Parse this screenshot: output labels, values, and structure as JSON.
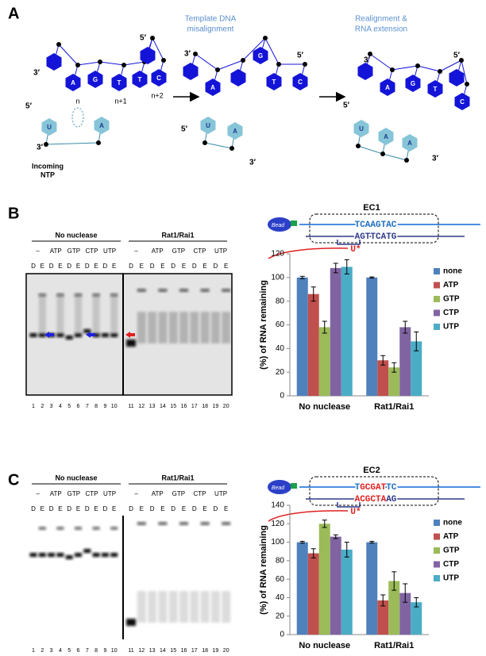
{
  "panel_a": {
    "label": "A",
    "step_1": [
      "Template DNA",
      "misalignment"
    ],
    "step_2": [
      "Realignment &",
      "RNA extension"
    ],
    "structures": [
      {
        "bases": [
          "A",
          "G",
          "T",
          "T",
          "C",
          "U",
          "A"
        ],
        "ends": [
          "3′",
          "5′",
          "5′",
          "3′"
        ],
        "positions": [
          "n",
          "n+1",
          "n+2"
        ],
        "incoming": [
          "Incoming",
          "NTP"
        ]
      },
      {
        "bases": [
          "A",
          "G",
          "T",
          "C",
          "U",
          "A"
        ],
        "ends": [
          "3′",
          "5′",
          "5′",
          "3′"
        ]
      },
      {
        "bases": [
          "A",
          "G",
          "T",
          "C",
          "U",
          "A",
          "A"
        ],
        "ends": [
          "3′",
          "5′",
          "5′",
          "3′"
        ]
      }
    ]
  },
  "panel_b": {
    "label": "B",
    "groups": [
      "No nuclease",
      "Rat1/Rai1"
    ],
    "treatments": [
      "–",
      "ATP",
      "GTP",
      "CTP",
      "UTP"
    ],
    "lane_types": [
      "D",
      "E"
    ],
    "lanes": [
      1,
      2,
      3,
      4,
      5,
      6,
      7,
      8,
      9,
      10,
      11,
      12,
      13,
      14,
      15,
      16,
      17,
      18,
      19,
      20
    ],
    "complex": {
      "title": "EC1",
      "bead": "Bead",
      "top": [
        "TCAAGTAC"
      ],
      "bottom": [
        "AGTTCATG"
      ],
      "rna": "U*"
    }
  },
  "panel_c": {
    "label": "C",
    "groups": [
      "No nuclease",
      "Rat1/Rai1"
    ],
    "treatments": [
      "–",
      "ATP",
      "GTP",
      "CTP",
      "UTP"
    ],
    "lane_types": [
      "D",
      "E"
    ],
    "lanes": [
      1,
      2,
      3,
      4,
      5,
      6,
      7,
      8,
      9,
      10,
      11,
      12,
      13,
      14,
      15,
      16,
      17,
      18,
      19,
      20
    ],
    "complex": {
      "title": "EC2",
      "bead": "Bead",
      "top": [
        "T",
        "GCGAT",
        "TC"
      ],
      "bottom": [
        "ACGCTA",
        "AG"
      ],
      "rna": "U*"
    }
  },
  "chart_data": [
    {
      "type": "bar",
      "ylabel": "(%) of RNA remaining",
      "categories": [
        "No nuclease",
        "Rat1/Rai1"
      ],
      "series": [
        {
          "name": "none",
          "color": "#4f81bd",
          "values": [
            100,
            100
          ],
          "errors": [
            1,
            0.5
          ]
        },
        {
          "name": "ATP",
          "color": "#c0504d",
          "values": [
            86,
            30
          ],
          "errors": [
            6,
            4
          ]
        },
        {
          "name": "GTP",
          "color": "#9bbb59",
          "values": [
            58,
            24
          ],
          "errors": [
            5,
            4
          ]
        },
        {
          "name": "CTP",
          "color": "#8064a2",
          "values": [
            108,
            58
          ],
          "errors": [
            4,
            5
          ]
        },
        {
          "name": "UTP",
          "color": "#4bacc6",
          "values": [
            109,
            46
          ],
          "errors": [
            6,
            8
          ]
        }
      ],
      "ylim": [
        0,
        120
      ],
      "yticks": [
        0,
        20,
        40,
        60,
        80,
        100,
        120
      ],
      "legend": "right"
    },
    {
      "type": "bar",
      "ylabel": "(%) of RNA remaining",
      "categories": [
        "No nuclease",
        "Rat1/Rai1"
      ],
      "series": [
        {
          "name": "none",
          "color": "#4f81bd",
          "values": [
            100,
            100
          ],
          "errors": [
            1,
            1
          ]
        },
        {
          "name": "ATP",
          "color": "#c0504d",
          "values": [
            88,
            37
          ],
          "errors": [
            5,
            6
          ]
        },
        {
          "name": "GTP",
          "color": "#9bbb59",
          "values": [
            120,
            58
          ],
          "errors": [
            4,
            10
          ]
        },
        {
          "name": "CTP",
          "color": "#8064a2",
          "values": [
            106,
            45
          ],
          "errors": [
            2,
            10
          ]
        },
        {
          "name": "UTP",
          "color": "#4bacc6",
          "values": [
            92,
            35
          ],
          "errors": [
            8,
            5
          ]
        }
      ],
      "ylim": [
        0,
        140
      ],
      "yticks": [
        0,
        20,
        40,
        60,
        80,
        100,
        120,
        140
      ],
      "legend": "right"
    }
  ]
}
